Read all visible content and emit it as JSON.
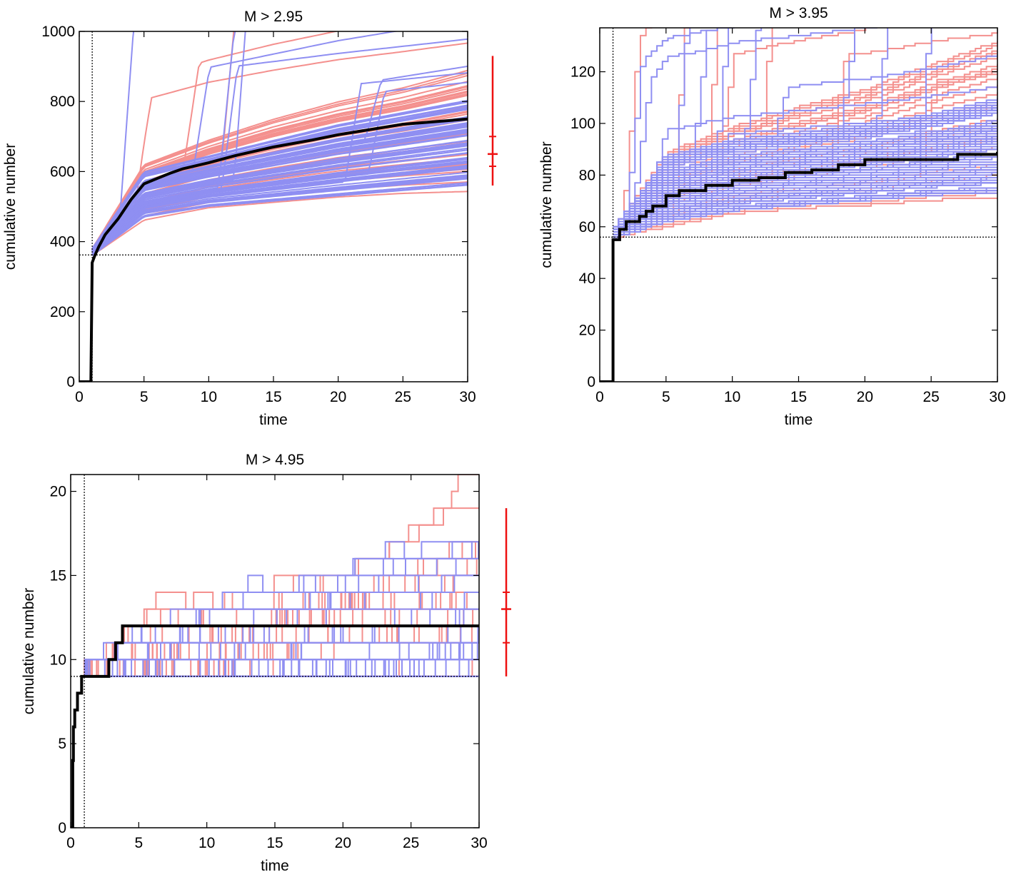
{
  "colors": {
    "observed": "#000000",
    "sim_red": "#f4908e",
    "sim_blue": "#8f8ff2",
    "errorbar": "#ee1111",
    "refline": "#000000"
  },
  "chart_data": [
    {
      "type": "line",
      "title": "M > 2.95",
      "xlabel": "time",
      "ylabel": "cumulative number",
      "xlim": [
        0,
        30
      ],
      "ylim": [
        0,
        1000
      ],
      "xticks": [
        0,
        5,
        10,
        15,
        20,
        25,
        30
      ],
      "yticks": [
        0,
        200,
        400,
        600,
        800,
        1000
      ],
      "grid": false,
      "ref_vline_x": 1.0,
      "ref_hline_y": 362,
      "observed": {
        "x": [
          0,
          0.9,
          1.0,
          1.2,
          1.5,
          2,
          3,
          4,
          5,
          6,
          7,
          8,
          10,
          12,
          15,
          18,
          20,
          25,
          30
        ],
        "y": [
          0,
          0,
          340,
          360,
          385,
          420,
          465,
          520,
          565,
          580,
          595,
          608,
          625,
          645,
          670,
          690,
          705,
          735,
          750
        ]
      },
      "band_blue": {
        "x": [
          1,
          5,
          10,
          15,
          20,
          25,
          30
        ],
        "low": [
          360,
          470,
          500,
          515,
          530,
          545,
          560
        ],
        "high": [
          380,
          600,
          645,
          690,
          735,
          770,
          805
        ]
      },
      "sim_red_extremes": {
        "x": [
          1,
          5,
          10,
          15,
          20,
          25,
          30
        ],
        "low": [
          360,
          460,
          495,
          510,
          525,
          535,
          540
        ],
        "high": [
          380,
          620,
          690,
          750,
          800,
          840,
          890
        ]
      },
      "errorbar": {
        "center": 650,
        "low": 560,
        "high": 930,
        "ticks": [
          615,
          700
        ]
      }
    },
    {
      "type": "line",
      "title": "M > 3.95",
      "xlabel": "time",
      "ylabel": "cumulative number",
      "xlim": [
        0,
        30
      ],
      "ylim": [
        0,
        137
      ],
      "xticks": [
        0,
        5,
        10,
        15,
        20,
        25,
        30
      ],
      "yticks": [
        0,
        20,
        40,
        60,
        80,
        100,
        120
      ],
      "grid": false,
      "ref_vline_x": 1.0,
      "ref_hline_y": 56,
      "observed": {
        "x": [
          0,
          0.9,
          1.0,
          1.5,
          2,
          3,
          3.5,
          4,
          5,
          6,
          8,
          10,
          12,
          14,
          16,
          18,
          20,
          25,
          27,
          30
        ],
        "y": [
          0,
          0,
          55,
          59,
          62,
          64,
          66,
          68,
          72,
          74,
          76,
          78,
          79,
          81,
          82,
          84,
          86,
          86,
          88,
          89
        ]
      },
      "band_blue": {
        "x": [
          1,
          5,
          10,
          15,
          20,
          25,
          30
        ],
        "low": [
          56,
          62,
          66,
          68,
          70,
          72,
          73
        ],
        "high": [
          60,
          88,
          94,
          97,
          100,
          104,
          110
        ]
      },
      "sim_red_extremes": {
        "x": [
          1,
          5,
          10,
          15,
          20,
          25,
          30
        ],
        "low": [
          56,
          60,
          65,
          67,
          68,
          70,
          71
        ],
        "high": [
          60,
          90,
          100,
          108,
          115,
          125,
          134
        ]
      },
      "errorbar": null
    },
    {
      "type": "line",
      "title": "M > 4.95",
      "xlabel": "time",
      "ylabel": "cumulative number",
      "xlim": [
        0,
        30
      ],
      "ylim": [
        0,
        21
      ],
      "xticks": [
        0,
        5,
        10,
        15,
        20,
        25,
        30
      ],
      "yticks": [
        0,
        5,
        10,
        15,
        20
      ],
      "grid": false,
      "ref_vline_x": 1.0,
      "ref_hline_y": 9,
      "observed": {
        "x": [
          0,
          0.15,
          0.2,
          0.3,
          0.5,
          0.8,
          1.0,
          2.8,
          3.3,
          3.8,
          30
        ],
        "y": [
          0,
          4,
          6,
          7,
          8,
          9,
          9,
          10,
          11,
          12,
          12
        ]
      },
      "band_blue_levels": [
        9,
        10,
        11,
        12,
        13,
        14,
        15,
        16,
        17,
        20
      ],
      "sim_red_levels": [
        9,
        10,
        11,
        12,
        13,
        14,
        15,
        16,
        17,
        18,
        19,
        20,
        21
      ],
      "errorbar": {
        "center": 13,
        "low": 9,
        "high": 19,
        "ticks": [
          11,
          14
        ]
      }
    }
  ]
}
